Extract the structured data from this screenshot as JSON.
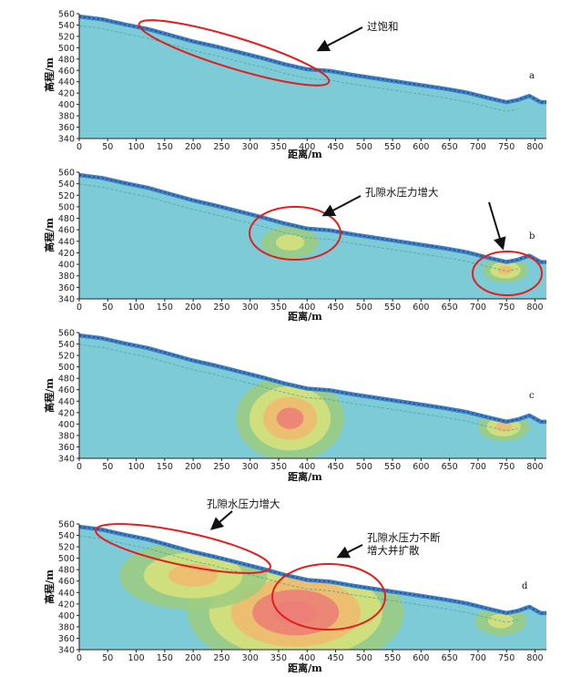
{
  "chart_data": [
    {
      "panel": "a",
      "type": "area",
      "xlabel": "距离/m",
      "ylabel": "高程/m",
      "xlim": [
        0,
        820
      ],
      "ylim": [
        340,
        560
      ],
      "xticks": [
        0,
        50,
        100,
        150,
        200,
        250,
        300,
        350,
        400,
        450,
        500,
        550,
        600,
        650,
        700,
        750,
        800
      ],
      "yticks": [
        340,
        360,
        380,
        400,
        420,
        440,
        460,
        480,
        500,
        520,
        540,
        560
      ],
      "annotations": [
        "过饱和"
      ],
      "pressure_zones": []
    },
    {
      "panel": "b",
      "type": "area",
      "xlabel": "距离/m",
      "ylabel": "高程/m",
      "xlim": [
        0,
        820
      ],
      "ylim": [
        340,
        560
      ],
      "xticks": [
        0,
        50,
        100,
        150,
        200,
        250,
        300,
        350,
        400,
        450,
        500,
        550,
        600,
        650,
        700,
        750,
        800
      ],
      "yticks": [
        340,
        360,
        380,
        400,
        420,
        440,
        460,
        480,
        500,
        520,
        540,
        560
      ],
      "annotations": [
        "孔隙水压力增大"
      ],
      "pressure_zones": [
        {
          "cx": 370,
          "cy": 438,
          "rx": 50,
          "ry": 28,
          "intensity": 1
        },
        {
          "cx": 748,
          "cy": 390,
          "rx": 40,
          "ry": 22,
          "intensity": 2
        }
      ]
    },
    {
      "panel": "c",
      "type": "area",
      "xlabel": "距离/m",
      "ylabel": "高程/m",
      "xlim": [
        0,
        820
      ],
      "ylim": [
        340,
        560
      ],
      "xticks": [
        0,
        50,
        100,
        150,
        200,
        250,
        300,
        350,
        400,
        450,
        500,
        550,
        600,
        650,
        700,
        750,
        800
      ],
      "yticks": [
        340,
        360,
        380,
        400,
        420,
        440,
        460,
        480,
        500,
        520,
        540,
        560
      ],
      "annotations": [],
      "pressure_zones": [
        {
          "cx": 370,
          "cy": 410,
          "rx": 95,
          "ry": 75,
          "intensity": 3
        },
        {
          "cx": 745,
          "cy": 395,
          "rx": 45,
          "ry": 25,
          "intensity": 2
        }
      ]
    },
    {
      "panel": "d",
      "type": "area",
      "xlabel": "距离/m",
      "ylabel": "高程/m",
      "xlim": [
        0,
        820
      ],
      "ylim": [
        340,
        560
      ],
      "xticks": [
        0,
        50,
        100,
        150,
        200,
        250,
        300,
        350,
        400,
        450,
        500,
        550,
        600,
        650,
        700,
        750,
        800
      ],
      "yticks": [
        340,
        360,
        380,
        400,
        420,
        440,
        460,
        480,
        500,
        520,
        540,
        560
      ],
      "annotations": [
        "孔隙水压力增大",
        "孔隙水压力不断",
        "增大并扩散"
      ],
      "pressure_zones": [
        {
          "cx": 380,
          "cy": 405,
          "rx": 190,
          "ry": 100,
          "intensity": 4
        },
        {
          "cx": 200,
          "cy": 470,
          "rx": 130,
          "ry": 60,
          "intensity": 2
        },
        {
          "cx": 740,
          "cy": 390,
          "rx": 45,
          "ry": 25,
          "intensity": 1
        }
      ]
    }
  ],
  "profile": {
    "x": [
      0,
      40,
      80,
      120,
      160,
      200,
      240,
      280,
      320,
      360,
      400,
      440,
      480,
      520,
      560,
      600,
      640,
      680,
      720,
      750,
      770,
      790,
      810,
      820
    ],
    "y": [
      555,
      550,
      541,
      533,
      522,
      511,
      502,
      492,
      482,
      471,
      462,
      459,
      452,
      446,
      440,
      434,
      428,
      421,
      411,
      404,
      408,
      415,
      404,
      404
    ]
  },
  "colors": {
    "body": "#7dcbd7",
    "surface": "#3d7fc4",
    "zone_low": "#9ccc80",
    "zone_mid": "#d9e27a",
    "zone_high": "#f1b86c",
    "zone_peak": "#ec7e78",
    "ellipse": "#e02020"
  }
}
